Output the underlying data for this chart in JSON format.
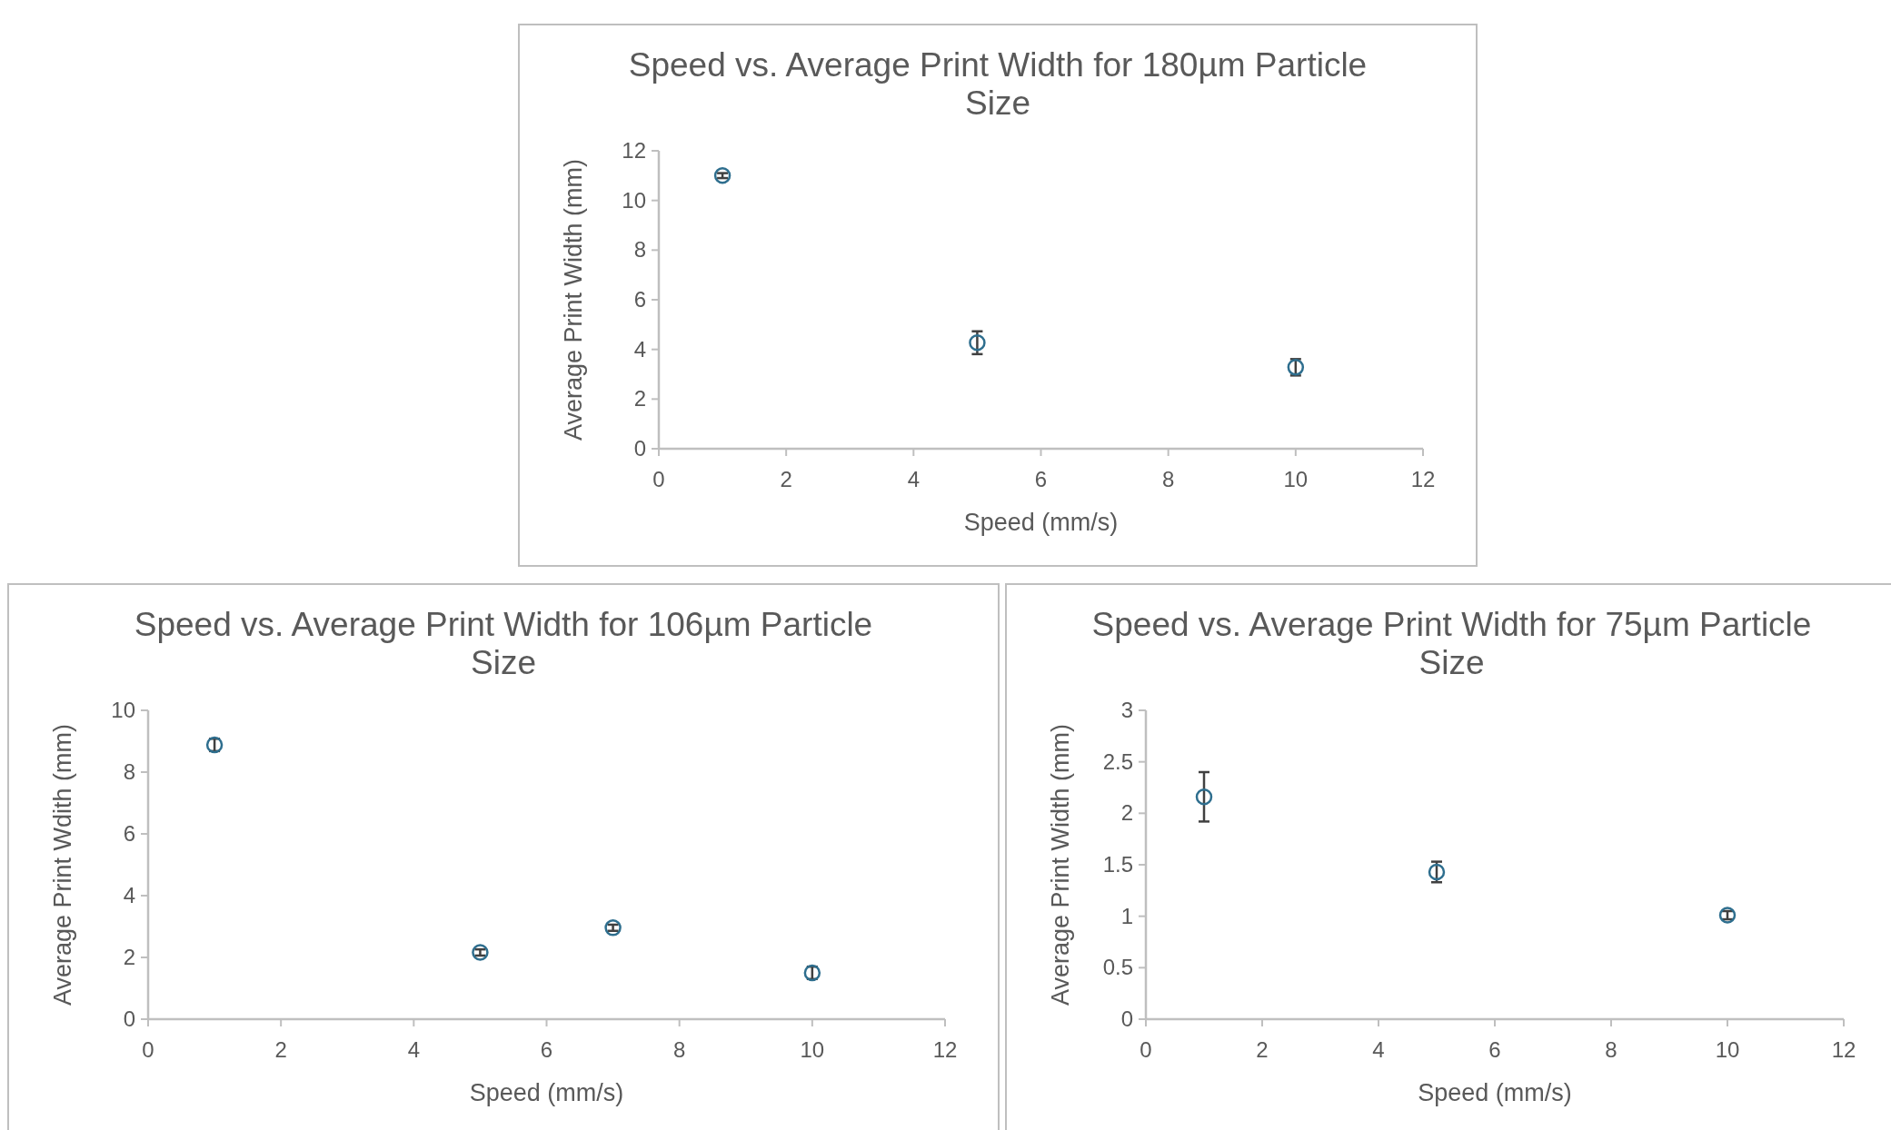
{
  "chart_data": [
    {
      "type": "scatter",
      "title": "Speed vs. Average Print Width for 180µm Particle Size",
      "xlabel": "Speed (mm/s)",
      "ylabel": "Average Print Width (mm)",
      "x": [
        1,
        5,
        10
      ],
      "values": [
        11.0,
        4.27,
        3.28
      ],
      "errors": [
        0.1,
        0.46,
        0.33
      ],
      "color": "#2e6e8e",
      "marker": "circle",
      "xlim": [
        0,
        12
      ],
      "ylim": [
        0,
        12
      ],
      "xticks": [
        0,
        2,
        4,
        6,
        8,
        10,
        12
      ],
      "yticks": [
        0,
        2,
        4,
        6,
        8,
        10,
        12
      ]
    },
    {
      "type": "scatter",
      "title": "Speed vs. Average Print Width for 106µm Particle Size",
      "xlabel": "Speed (mm/s)",
      "ylabel": "Average Print Wdith (mm)",
      "x": [
        1,
        5,
        7,
        10
      ],
      "values": [
        8.88,
        2.16,
        2.96,
        1.5
      ],
      "errors": [
        0.2,
        0.1,
        0.1,
        0.2
      ],
      "color": "#2e6e8e",
      "marker": "circle",
      "xlim": [
        0,
        12
      ],
      "ylim": [
        0,
        10
      ],
      "xticks": [
        0,
        2,
        4,
        6,
        8,
        10,
        12
      ],
      "yticks": [
        0,
        2,
        4,
        6,
        8,
        10
      ]
    },
    {
      "type": "scatter",
      "title": "Speed vs. Average Print Width for 75µm Particle Size",
      "xlabel": "Speed (mm/s)",
      "ylabel": "Average Print Width (mm)",
      "x": [
        1,
        5,
        10
      ],
      "values": [
        2.16,
        1.43,
        1.01
      ],
      "errors": [
        0.24,
        0.1,
        0.04
      ],
      "color": "#2e6e8e",
      "marker": "circle",
      "xlim": [
        0,
        12
      ],
      "ylim": [
        0,
        3
      ],
      "xticks": [
        0,
        2,
        4,
        6,
        8,
        10,
        12
      ],
      "yticks": [
        0,
        0.5,
        1,
        1.5,
        2,
        2.5,
        3
      ]
    }
  ]
}
